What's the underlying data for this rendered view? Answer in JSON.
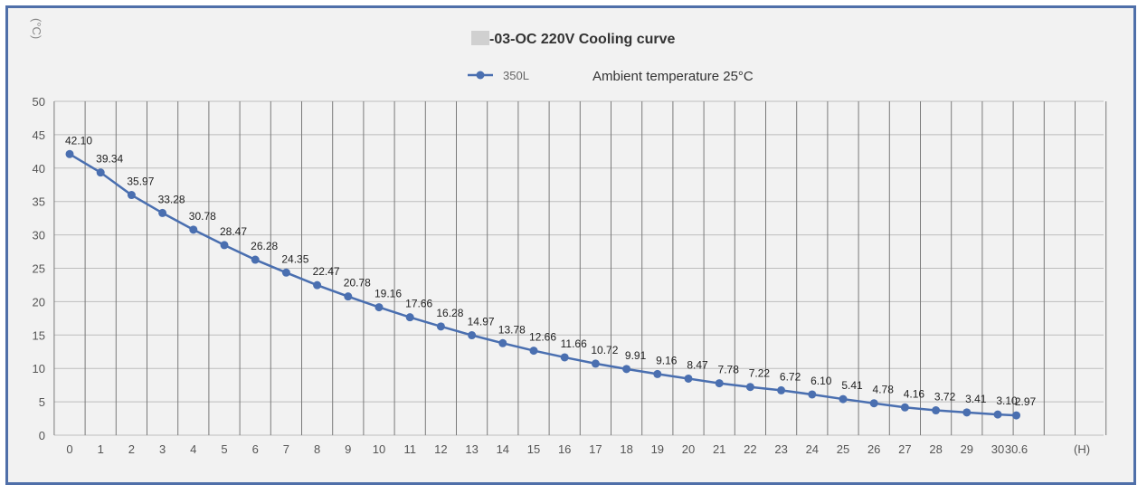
{
  "chart_data": {
    "type": "line",
    "title": "-03-OC 220V  Cooling curve",
    "ylabel": "(°C)",
    "xlabel": "(H)",
    "annotation": "Ambient temperature  25°C",
    "legend_position": "top-center",
    "grid": true,
    "ylim": [
      0,
      50
    ],
    "yticks": [
      "0",
      "5",
      "10",
      "15",
      "20",
      "25",
      "30",
      "35",
      "40",
      "45",
      "50"
    ],
    "x": [
      0,
      1,
      2,
      3,
      4,
      5,
      6,
      7,
      8,
      9,
      10,
      11,
      12,
      13,
      14,
      15,
      16,
      17,
      18,
      19,
      20,
      21,
      22,
      23,
      24,
      25,
      26,
      27,
      28,
      29,
      30,
      30.6
    ],
    "xtick_labels": [
      "0",
      "1",
      "2",
      "3",
      "4",
      "5",
      "6",
      "7",
      "8",
      "9",
      "10",
      "11",
      "12",
      "13",
      "14",
      "15",
      "16",
      "17",
      "18",
      "19",
      "20",
      "21",
      "22",
      "23",
      "24",
      "25",
      "26",
      "27",
      "28",
      "29",
      "30",
      "30.6"
    ],
    "series": [
      {
        "name": "350L",
        "color": "#4a6fb0",
        "values": [
          42.1,
          39.34,
          35.97,
          33.28,
          30.78,
          28.47,
          26.28,
          24.35,
          22.47,
          20.78,
          19.16,
          17.66,
          16.28,
          14.97,
          13.78,
          12.66,
          11.66,
          10.72,
          9.91,
          9.16,
          8.47,
          7.78,
          7.22,
          6.72,
          6.1,
          5.41,
          4.78,
          4.16,
          3.72,
          3.41,
          3.1,
          2.97
        ],
        "labels": [
          "42.10",
          "39.34",
          "35.97",
          "33.28",
          "30.78",
          "28.47",
          "26.28",
          "24.35",
          "22.47",
          "20.78",
          "19.16",
          "17.66",
          "16.28",
          "14.97",
          "13.78",
          "12.66",
          "11.66",
          "10.72",
          "9.91",
          "9.16",
          "8.47",
          "7.78",
          "7.22",
          "6.72",
          "6.10",
          "5.41",
          "4.78",
          "4.16",
          "3.72",
          "3.41",
          "3.10",
          "2.97"
        ]
      }
    ]
  },
  "colors": {
    "frame": "#4f6fa9",
    "line": "#4a6fb0",
    "grid": "#7a7a7a"
  }
}
